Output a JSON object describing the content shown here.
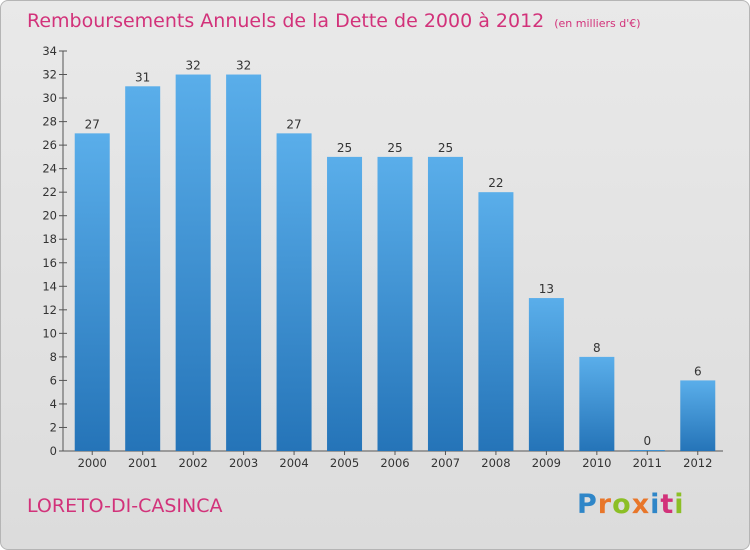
{
  "header": {
    "title": "Remboursements Annuels de la Dette de 2000 à 2012",
    "unit": "(en milliers d'€)"
  },
  "footer": {
    "commune": "LORETO-DI-CASINCA",
    "logo_letters": [
      "P",
      "r",
      "o",
      "x",
      "i",
      "t",
      "i"
    ]
  },
  "colors": {
    "title": "#d2327a",
    "bar_top": "#5aaeea",
    "bar_bottom": "#2574b8",
    "background": "#e4e4e4"
  },
  "chart_data": {
    "type": "bar",
    "title": "Remboursements Annuels de la Dette de 2000 à 2012",
    "subtitle": "(en milliers d'€)",
    "xlabel": "",
    "ylabel": "",
    "categories": [
      "2000",
      "2001",
      "2002",
      "2003",
      "2004",
      "2005",
      "2006",
      "2007",
      "2008",
      "2009",
      "2010",
      "2011",
      "2012"
    ],
    "values": [
      27,
      31,
      32,
      32,
      27,
      25,
      25,
      25,
      22,
      13,
      8,
      0,
      6
    ],
    "ylim": [
      0,
      34
    ],
    "yticks": [
      0,
      2,
      4,
      6,
      8,
      10,
      12,
      14,
      16,
      18,
      20,
      22,
      24,
      26,
      28,
      30,
      32,
      34
    ],
    "grid": false,
    "legend": "none"
  }
}
